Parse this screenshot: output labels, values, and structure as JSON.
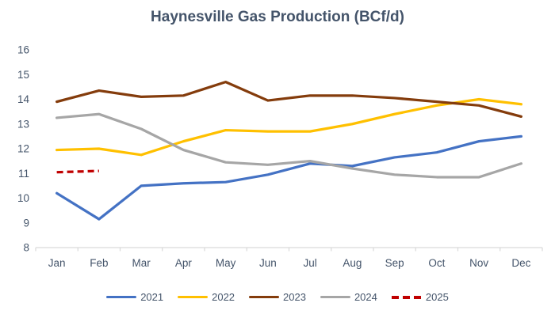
{
  "chart_data": {
    "type": "line",
    "title": "Haynesville Gas Production (BCf/d)",
    "xlabel": "",
    "ylabel": "",
    "ylim": [
      8,
      16
    ],
    "y_ticks": [
      8,
      9,
      10,
      11,
      12,
      13,
      14,
      15,
      16
    ],
    "grid": false,
    "legend_position": "bottom",
    "categories": [
      "Jan",
      "Feb",
      "Mar",
      "Apr",
      "May",
      "Jun",
      "Jul",
      "Aug",
      "Sep",
      "Oct",
      "Nov",
      "Dec"
    ],
    "series": [
      {
        "name": "2021",
        "color": "#4472C4",
        "style": "solid",
        "values": [
          10.2,
          9.15,
          10.5,
          10.6,
          10.65,
          10.95,
          11.4,
          11.3,
          11.65,
          11.85,
          12.3,
          12.5
        ]
      },
      {
        "name": "2022",
        "color": "#FFC000",
        "style": "solid",
        "values": [
          11.95,
          12.0,
          11.75,
          12.3,
          12.75,
          12.7,
          12.7,
          13.0,
          13.4,
          13.75,
          14.0,
          13.8
        ]
      },
      {
        "name": "2023",
        "color": "#843C0C",
        "style": "solid",
        "values": [
          13.9,
          14.35,
          14.1,
          14.15,
          14.7,
          13.95,
          14.15,
          14.15,
          14.05,
          13.9,
          13.75,
          13.3
        ]
      },
      {
        "name": "2024",
        "color": "#A6A6A6",
        "style": "solid",
        "values": [
          13.25,
          13.4,
          12.8,
          11.95,
          11.45,
          11.35,
          11.5,
          11.2,
          10.95,
          10.85,
          10.85,
          11.4
        ]
      },
      {
        "name": "2025",
        "color": "#C00000",
        "style": "dashed",
        "values": [
          11.05,
          11.1
        ]
      }
    ]
  },
  "colors": {
    "title": "#44546A",
    "axis_labels": "#44546A",
    "axis_line": "#D9D9D9",
    "background": "#FFFFFF"
  }
}
